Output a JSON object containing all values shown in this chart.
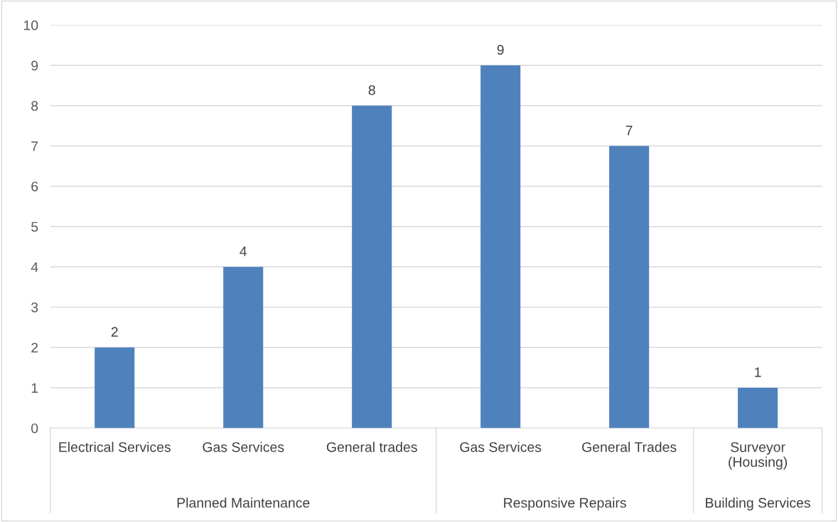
{
  "chart_data": {
    "type": "bar",
    "categories": [
      "Electrical Services",
      "Gas Services",
      "General trades",
      "Gas Services",
      "General Trades",
      "Surveyor\n(Housing)"
    ],
    "values": [
      2,
      4,
      8,
      9,
      7,
      1
    ],
    "color": "#4f81bd",
    "ylim": [
      0,
      10
    ],
    "yticks": [
      0,
      1,
      2,
      3,
      4,
      5,
      6,
      7,
      8,
      9,
      10
    ],
    "grid": "y",
    "data_labels": true,
    "annotations": [
      "Planned Maintenance",
      "Responsive Repairs",
      "Building Services"
    ]
  }
}
